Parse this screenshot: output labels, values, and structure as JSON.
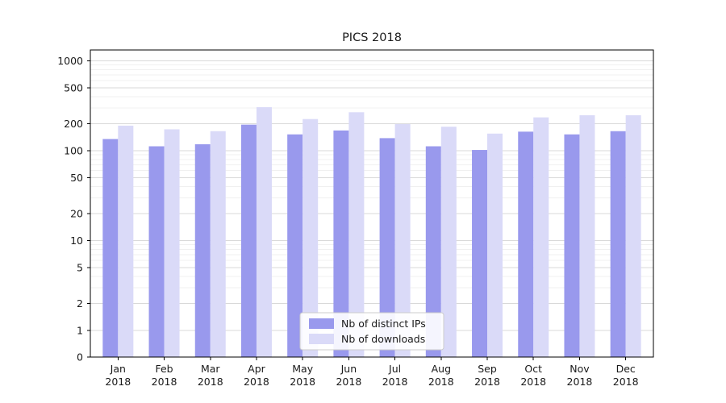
{
  "chart_data": {
    "type": "bar",
    "title": "PICS 2018",
    "categories": [
      "Jan",
      "Feb",
      "Mar",
      "Apr",
      "May",
      "Jun",
      "Jul",
      "Aug",
      "Sep",
      "Oct",
      "Nov",
      "Dec"
    ],
    "category_sublabel": "2018",
    "series": [
      {
        "name": "Nb of distinct IPs",
        "color": "#9999ed",
        "values": [
          135,
          112,
          118,
          195,
          152,
          168,
          138,
          112,
          102,
          163,
          152,
          165
        ]
      },
      {
        "name": "Nb of downloads",
        "color": "#dadaf8",
        "values": [
          190,
          173,
          165,
          305,
          225,
          268,
          198,
          185,
          155,
          235,
          248,
          248
        ]
      }
    ],
    "xlabel": "",
    "ylabel": "",
    "yscale": "symlog",
    "yticks": [
      0,
      1,
      2,
      5,
      10,
      20,
      50,
      100,
      200,
      500,
      1000
    ],
    "ylim": [
      0,
      1300
    ],
    "grid": true,
    "legend_position": "lower center"
  },
  "colors": {
    "axis": "#000000",
    "grid_major": "#d9d9d9",
    "grid_minor": "#f0f0f0",
    "text": "#1a1a1a",
    "legend_border": "#cccccc",
    "background": "#ffffff"
  }
}
